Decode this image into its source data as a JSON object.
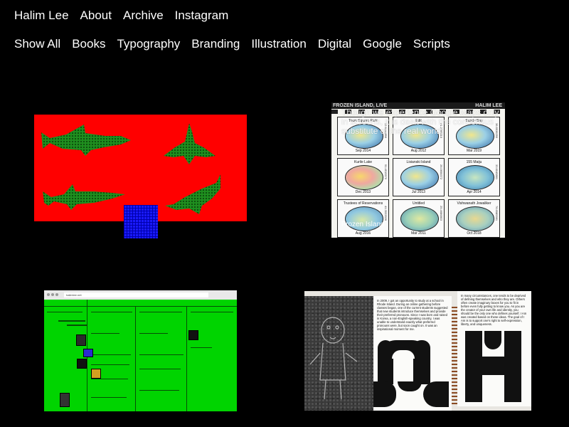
{
  "nav": {
    "site_title": "Halim Lee",
    "about": "About",
    "archive": "Archive",
    "instagram": "Instagram"
  },
  "filters": [
    "Show All",
    "Books",
    "Typography",
    "Branding",
    "Illustration",
    "Digital",
    "Google",
    "Scripts"
  ],
  "works": {
    "stamps": {
      "sheet_title_left": "FROZEN ISLAND, LIVE",
      "sheet_title_right": "HALIM LEE",
      "overlay": "Though we experience Google Maps only in screens, it is dealt with the consensus substitute of the real world.",
      "overlay_bottom": "Frozen Island",
      "stamps": [
        {
          "name": "Town Square Park",
          "date": "Sep 2014",
          "code": "32.6396896"
        },
        {
          "name": "Edit",
          "date": "Aug 2012",
          "code": "51.2785219"
        },
        {
          "name": "Sandy Bay",
          "date": "Mar 2019",
          "code": "36.6936299"
        },
        {
          "name": "Kurile Lake",
          "date": "Dec 2013",
          "code": "51.4515970"
        },
        {
          "name": "Lisianski Island",
          "date": "Jul 2013",
          "code": "26.0698372"
        },
        {
          "name": "155 Maiju",
          "date": "Apr 2014",
          "code": "33.6045861"
        },
        {
          "name": "Trustees of Reservations",
          "date": "Aug 2016",
          "code": "41.3533526"
        },
        {
          "name": "Untitled",
          "date": "Mar 2011",
          "code": "29.4686803"
        },
        {
          "name": "Vishwanath Jowaliker",
          "date": "Oct 2018",
          "code": "76.6989961"
        }
      ]
    },
    "website": {
      "url": "halimlee.net"
    },
    "book": {
      "page_text": "In 2009, I got an opportunity to study at a school in Rhode Island. During an online gathering before classes began, one of the current students suggested that new students introduce themselves and provide their preferred pronouns. Since I was born and raised in Korea, a non-English-speaking country, I was unable to understand exactly what preferred pronouns were, but soon caught on. It was an inspirational moment for me.",
      "right_text": "In many circumstances, one tends to be deprived of defining themselves and who they are. Others often create imaginary boxes for you to fit in before even fully getting to know you. As you are the creator of your own life and identity, you should be the only one who defines yourself. I Am was created based on these ideas. The goal of I Am is to support one's right to self-expression, liberty, and uniqueness."
    }
  }
}
